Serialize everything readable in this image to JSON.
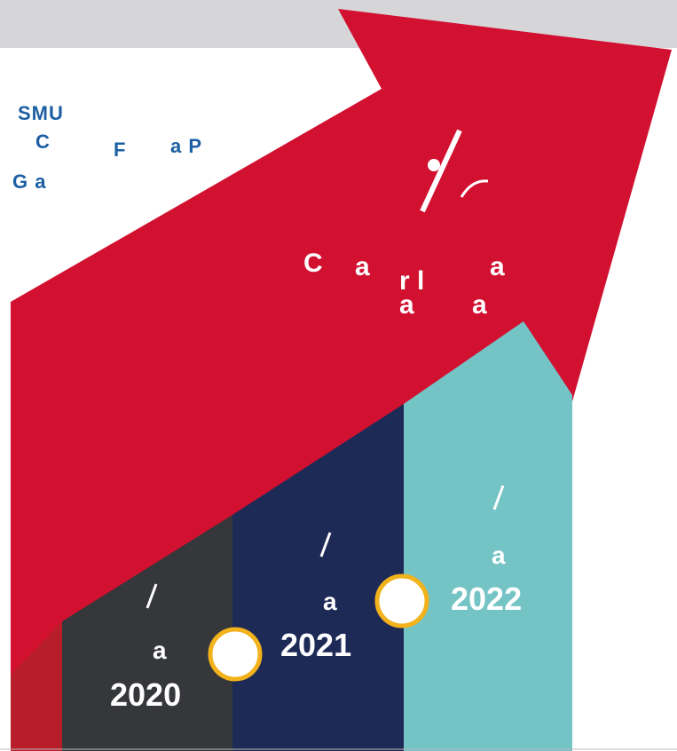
{
  "colors": {
    "top_band": "#d6d6d8",
    "arrow_red": "#d21030",
    "dark_gray": "#35373a",
    "navy": "#1e2a56",
    "teal": "#74c3c5",
    "heading_blue": "#1d5fa3",
    "circle_stroke": "#f2b21b"
  },
  "heading": {
    "line1": "SMU",
    "line2_a": "C",
    "line2_b": "F",
    "line2_c": "a P",
    "line3": "G a"
  },
  "arrow": {
    "line1_a": "C",
    "line1_b": "a",
    "line1_c": "r l",
    "line1_d": "a",
    "line2_a": "a",
    "line2_b": "a"
  },
  "columns": [
    {
      "year": "2020",
      "unit": "a",
      "color": "#35373a"
    },
    {
      "year": "2021",
      "unit": "a",
      "color": "#1e2a56"
    },
    {
      "year": "2022",
      "unit": "a",
      "color": "#74c3c5"
    }
  ],
  "icons": [
    "slash-icon",
    "milestone-circle-icon"
  ]
}
